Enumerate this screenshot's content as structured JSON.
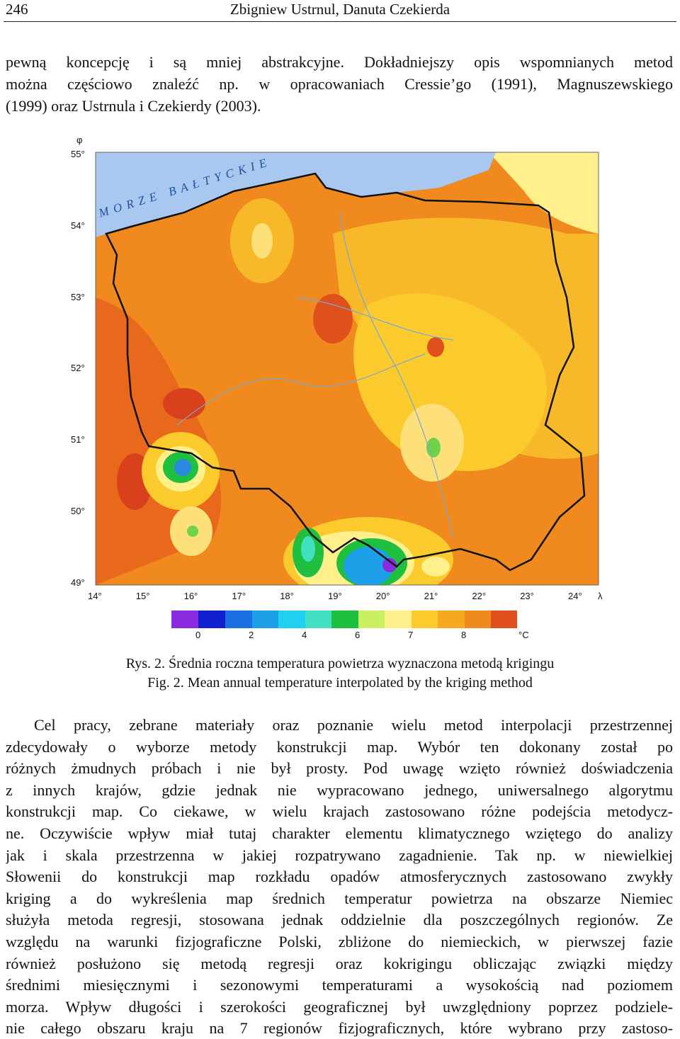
{
  "header": {
    "page_number": "246",
    "authors": "Zbigniew Ustrnul, Danuta Czekierda"
  },
  "intro": {
    "lines": [
      "pewną koncepcję i są mniej abstrakcyjne. Dokładniejszy opis wspomnianych metod",
      "można częściowo znaleźć np. w opracowaniach Cressie’go (1991), Magnuszewskiego",
      "(1999) oraz Ustrnula i Czekierdy (2003)."
    ]
  },
  "figure": {
    "lat_symbol": "φ",
    "lon_symbol": "λ",
    "sea_label": "MORZE BAŁTYCKIE",
    "lat_labels": [
      "55°",
      "54°",
      "53°",
      "52°",
      "51°",
      "50°",
      "49°"
    ],
    "lon_labels": [
      "14°",
      "15°",
      "16°",
      "17°",
      "18°",
      "19°",
      "20°",
      "21°",
      "22°",
      "23°",
      "24°"
    ],
    "legend_labels": [
      "0",
      "2",
      "4",
      "6",
      "7",
      "8"
    ],
    "legend_unit": "°C",
    "caption_pl": "Rys. 2. Średnia roczna temperatura powietrza wyznaczona metodą krigingu",
    "caption_en": "Fig. 2. Mean annual temperature interpolated by the kriging method"
  },
  "body": {
    "lines": [
      "Cel pracy, zebrane materiały oraz poznanie wielu metod interpolacji przestrzennej",
      "zdecydowały o wyborze metody konstrukcji map. Wybór ten dokonany został po",
      "różnych żmudnych próbach i nie był prosty. Pod uwagę wzięto również doświadczenia",
      "z innych krajów, gdzie jednak nie wypracowano jednego, uniwersalnego algorytmu",
      "konstrukcji map. Co ciekawe, w wielu krajach zastosowano różne podejścia metodycz-",
      "ne. Oczywiście wpływ miał tutaj charakter elementu klimatycznego wziętego do analizy",
      "jak i skala przestrzenna w jakiej rozpatrywano zagadnienie. Tak np. w niewielkiej",
      "Słowenii do konstrukcji map rozkładu opadów atmosferycznych zastosowano zwykły",
      "kriging a do wykreślenia map średnich temperatur powietrza na obszarze Niemiec",
      "służyła metoda regresji, stosowana jednak oddzielnie dla poszczególnych regionów. Ze",
      "względu na warunki fizjograficzne Polski, zbliżone do niemieckich, w pierwszej fazie",
      "również posłużono się metodą regresji oraz kokrigingu obliczając związki między",
      "średnimi miesięcznymi i sezonowymi temperaturami a wysokością nad poziomem",
      "morza. Wpływ długości i szerokości geograficznej był uwzględniony poprzez podziele-",
      "nie całego obszaru kraju na 7 regionów fizjograficznych, które wybrano przy zastoso-"
    ]
  }
}
